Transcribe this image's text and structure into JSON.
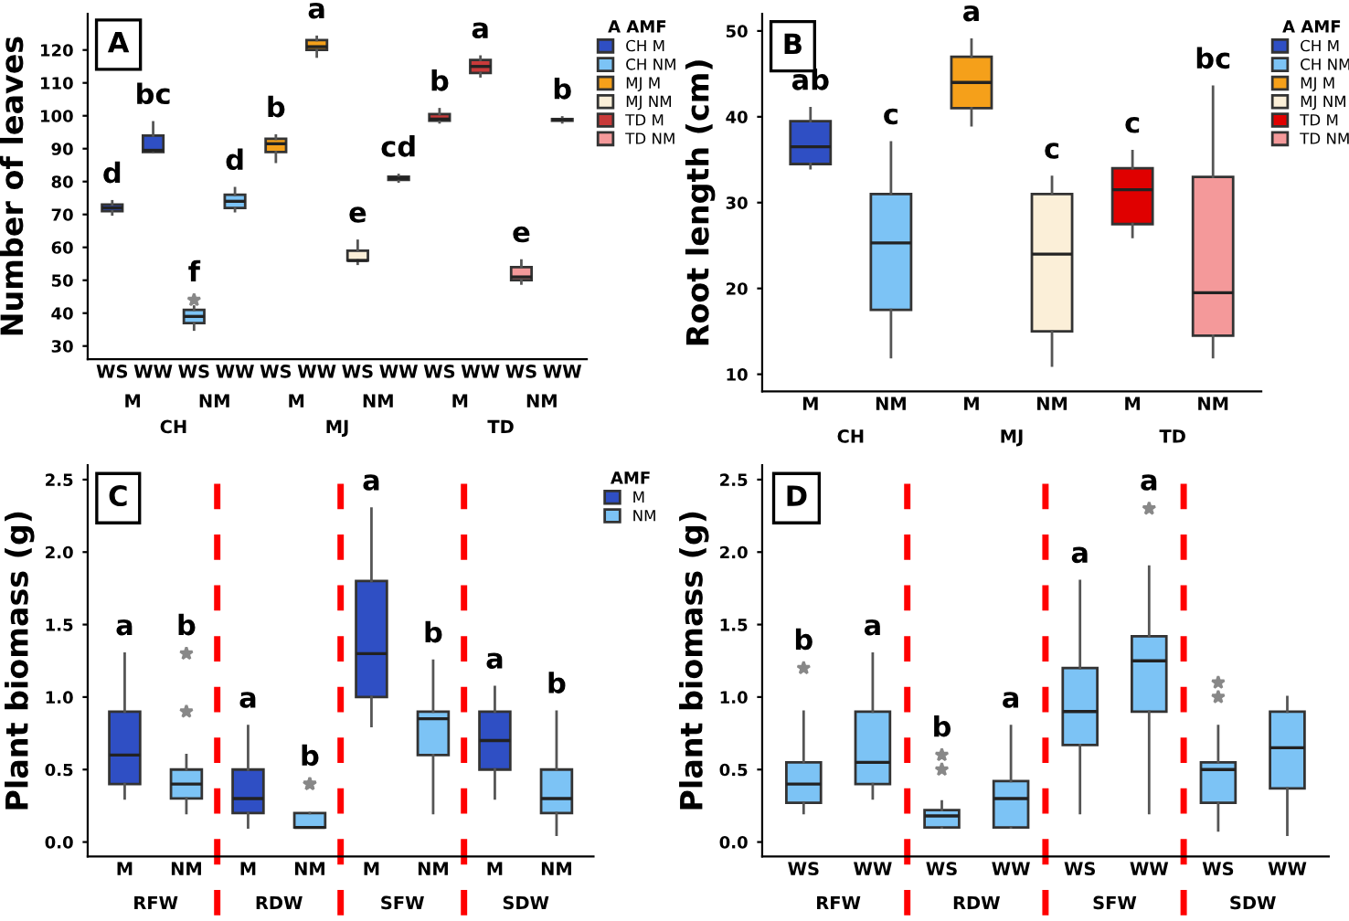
{
  "chart_data": [
    {
      "type": "box",
      "title": "A",
      "ylabel": "Number of leaves",
      "categories": [
        "WS",
        "WW",
        "WS",
        "WW",
        "WS",
        "WW",
        "WS",
        "WW",
        "WS",
        "WW",
        "WS",
        "WW"
      ],
      "ylim": [
        26,
        131
      ],
      "yticks": [
        30,
        40,
        50,
        60,
        70,
        80,
        90,
        100,
        110,
        120
      ],
      "legend": "top right",
      "legend_title": "A AMF",
      "grid": false,
      "annotations": [
        "M",
        "NM",
        "M",
        "NM",
        "M",
        "NM",
        "CH",
        "MJ",
        "TD"
      ],
      "series": [
        {
          "name": "CH M",
          "color": "#2f4fc4",
          "boxes": [
            {
              "low": 70,
              "q1": 71,
              "median": 72,
              "q3": 73,
              "high": 74
            },
            {
              "low": 89,
              "q1": 89,
              "median": 89.5,
              "q3": 94,
              "high": 98
            },
            null,
            null,
            null,
            null,
            null,
            null,
            null,
            null,
            null,
            null
          ],
          "value_labels": [
            "d",
            "bc",
            null,
            null,
            null,
            null,
            null,
            null,
            null,
            null,
            null,
            null
          ]
        },
        {
          "name": "CH NM",
          "color": "#7cc3f5",
          "boxes": [
            null,
            null,
            {
              "low": 35,
              "q1": 37,
              "median": 39,
              "q3": 41,
              "high": 42,
              "outliers": [
                44
              ]
            },
            {
              "low": 71,
              "q1": 72,
              "median": 74,
              "q3": 76,
              "high": 78
            },
            null,
            null,
            null,
            null,
            null,
            null,
            null,
            null
          ],
          "value_labels": [
            null,
            null,
            "f",
            "d",
            null,
            null,
            null,
            null,
            null,
            null,
            null,
            null
          ]
        },
        {
          "name": "MJ M",
          "color": "#f5a01a",
          "boxes": [
            null,
            null,
            null,
            null,
            {
              "low": 86,
              "q1": 89,
              "median": 91.5,
              "q3": 93,
              "high": 94
            },
            {
              "low": 118,
              "q1": 120,
              "median": 121,
              "q3": 123,
              "high": 124
            },
            null,
            null,
            null,
            null,
            null,
            null
          ],
          "value_labels": [
            null,
            null,
            null,
            null,
            "b",
            "a",
            null,
            null,
            null,
            null,
            null,
            null
          ]
        },
        {
          "name": "MJ NM",
          "color": "#fbefd8",
          "boxes": [
            null,
            null,
            null,
            null,
            null,
            null,
            {
              "low": 55,
              "q1": 56,
              "median": 56,
              "q3": 59,
              "high": 62
            },
            {
              "low": 80,
              "q1": 80.5,
              "median": 81,
              "q3": 81.5,
              "high": 82
            },
            null,
            null,
            null,
            null
          ],
          "value_labels": [
            null,
            null,
            null,
            null,
            null,
            null,
            "e",
            "cd",
            null,
            null,
            null,
            null
          ]
        },
        {
          "name": "TD M",
          "color": "#c83a3a",
          "boxes": [
            null,
            null,
            null,
            null,
            null,
            null,
            null,
            null,
            {
              "low": 98,
              "q1": 98.5,
              "median": 99,
              "q3": 100.5,
              "high": 102
            },
            {
              "low": 112,
              "q1": 113,
              "median": 115,
              "q3": 117,
              "high": 118
            },
            null,
            null
          ],
          "value_labels": [
            null,
            null,
            null,
            null,
            null,
            null,
            null,
            null,
            "b",
            "a",
            null,
            null
          ]
        },
        {
          "name": "TD NM",
          "color": "#f4999a",
          "boxes": [
            null,
            null,
            null,
            null,
            null,
            null,
            null,
            null,
            null,
            null,
            {
              "low": 49,
              "q1": 50,
              "median": 51,
              "q3": 54,
              "high": 56
            },
            {
              "low": 98,
              "q1": 98.5,
              "median": 98.8,
              "q3": 99,
              "high": 99.5
            }
          ],
          "value_labels": [
            null,
            null,
            null,
            null,
            null,
            null,
            null,
            null,
            null,
            null,
            "e",
            "b"
          ]
        }
      ]
    },
    {
      "type": "box",
      "title": "B",
      "ylabel": "Root length (cm)",
      "categories": [
        "M",
        "NM",
        "M",
        "NM",
        "M",
        "NM"
      ],
      "ylim": [
        8,
        52
      ],
      "yticks": [
        10,
        20,
        30,
        40,
        50
      ],
      "legend": "top right",
      "legend_title": "A AMF",
      "grid": false,
      "annotations": [
        "CH",
        "MJ",
        "TD"
      ],
      "series": [
        {
          "name": "CH M",
          "color": "#2f4fc4",
          "boxes": [
            {
              "low": 34,
              "q1": 34.5,
              "median": 36.5,
              "q3": 39.5,
              "high": 41
            },
            null,
            null,
            null,
            null,
            null
          ],
          "value_labels": [
            "ab",
            null,
            null,
            null,
            null,
            null
          ]
        },
        {
          "name": "CH NM",
          "color": "#7cc3f5",
          "boxes": [
            null,
            {
              "low": 12,
              "q1": 17.5,
              "median": 25.3,
              "q3": 31,
              "high": 37
            },
            null,
            null,
            null,
            null
          ],
          "value_labels": [
            null,
            "c",
            null,
            null,
            null,
            null
          ]
        },
        {
          "name": "MJ M",
          "color": "#f5a01a",
          "boxes": [
            null,
            null,
            {
              "low": 39,
              "q1": 41,
              "median": 44,
              "q3": 47,
              "high": 49
            },
            null,
            null,
            null
          ],
          "value_labels": [
            null,
            null,
            "a",
            null,
            null,
            null
          ]
        },
        {
          "name": "MJ NM",
          "color": "#fbefd8",
          "boxes": [
            null,
            null,
            null,
            {
              "low": 11,
              "q1": 15,
              "median": 24,
              "q3": 31,
              "high": 33
            },
            null,
            null
          ],
          "value_labels": [
            null,
            null,
            null,
            "c",
            null,
            null
          ]
        },
        {
          "name": "TD M",
          "color": "#e00000",
          "boxes": [
            null,
            null,
            null,
            null,
            {
              "low": 26,
              "q1": 27.5,
              "median": 31.5,
              "q3": 34,
              "high": 36
            },
            null
          ],
          "value_labels": [
            null,
            null,
            null,
            null,
            "c",
            null
          ]
        },
        {
          "name": "TD NM",
          "color": "#f4999a",
          "boxes": [
            null,
            null,
            null,
            null,
            null,
            {
              "low": 12,
              "q1": 14.5,
              "median": 19.5,
              "q3": 33,
              "high": 43.5
            }
          ],
          "value_labels": [
            null,
            null,
            null,
            null,
            null,
            "bc"
          ]
        }
      ]
    },
    {
      "type": "box",
      "title": "C",
      "ylabel": "Plant biomass (g)",
      "categories": [
        "M",
        "NM",
        "M",
        "NM",
        "M",
        "NM",
        "M",
        "NM"
      ],
      "ylim": [
        -0.1,
        2.6
      ],
      "yticks": [
        {
          "value": 0,
          "label": "0.0"
        },
        0.5,
        {
          "value": 1,
          "label": "1.0"
        },
        1.5,
        {
          "value": 2,
          "label": "2.0"
        },
        2.5
      ],
      "legend": "top right",
      "legend_title": "AMF",
      "grid": false,
      "annotations": [
        "RFW",
        "RDW",
        "SFW",
        "SDW"
      ],
      "series": [
        {
          "name": "M",
          "color": "#2f4fc4",
          "boxes": [
            {
              "low": 0.3,
              "q1": 0.4,
              "median": 0.6,
              "q3": 0.9,
              "high": 1.3
            },
            null,
            {
              "low": 0.1,
              "q1": 0.2,
              "median": 0.3,
              "q3": 0.5,
              "high": 0.8
            },
            null,
            {
              "low": 0.8,
              "q1": 1.0,
              "median": 1.3,
              "q3": 1.8,
              "high": 2.3
            },
            null,
            {
              "low": 0.3,
              "q1": 0.5,
              "median": 0.7,
              "q3": 0.9,
              "high": 1.07
            },
            null
          ],
          "value_labels": [
            "a",
            null,
            "a",
            null,
            "a",
            null,
            "a",
            null
          ]
        },
        {
          "name": "NM",
          "color": "#7cc3f5",
          "boxes": [
            null,
            {
              "low": 0.2,
              "q1": 0.3,
              "median": 0.4,
              "q3": 0.5,
              "high": 0.6,
              "outliers": [
                0.9,
                1.3
              ]
            },
            null,
            {
              "low": 0.1,
              "q1": 0.1,
              "median": 0.1,
              "q3": 0.2,
              "high": 0.2,
              "outliers": [
                0.4,
                0.4
              ]
            },
            null,
            {
              "low": 0.2,
              "q1": 0.6,
              "median": 0.85,
              "q3": 0.9,
              "high": 1.25
            },
            null,
            {
              "low": 0.05,
              "q1": 0.2,
              "median": 0.3,
              "q3": 0.5,
              "high": 0.9
            }
          ],
          "value_labels": [
            null,
            "b",
            null,
            "b",
            null,
            "b",
            null,
            "b"
          ]
        }
      ]
    },
    {
      "type": "box",
      "title": "D",
      "ylabel": "Plant biomass (g)",
      "categories": [
        "WS",
        "WW",
        "WS",
        "WW",
        "WS",
        "WW",
        "WS",
        "WW"
      ],
      "ylim": [
        -0.1,
        2.6
      ],
      "yticks": [
        {
          "value": 0,
          "label": "0.0"
        },
        0.5,
        {
          "value": 1,
          "label": "1.0"
        },
        1.5,
        {
          "value": 2,
          "label": "2.0"
        },
        2.5
      ],
      "grid": false,
      "annotations": [
        "RFW",
        "RDW",
        "SFW",
        "SDW"
      ],
      "series": [
        {
          "color": "#7cc3f5",
          "boxes": [
            {
              "low": 0.2,
              "q1": 0.27,
              "median": 0.4,
              "q3": 0.55,
              "high": 0.9,
              "outliers": [
                1.2
              ]
            },
            {
              "low": 0.3,
              "q1": 0.4,
              "median": 0.55,
              "q3": 0.9,
              "high": 1.3
            },
            {
              "low": 0.1,
              "q1": 0.1,
              "median": 0.18,
              "q3": 0.22,
              "high": 0.28,
              "outliers": [
                0.5,
                0.6
              ]
            },
            {
              "low": 0.1,
              "q1": 0.1,
              "median": 0.3,
              "q3": 0.42,
              "high": 0.8
            },
            {
              "low": 0.2,
              "q1": 0.67,
              "median": 0.9,
              "q3": 1.2,
              "high": 1.8
            },
            {
              "low": 0.2,
              "q1": 0.9,
              "median": 1.25,
              "q3": 1.42,
              "high": 1.9,
              "outliers": [
                2.3
              ]
            },
            {
              "low": 0.08,
              "q1": 0.27,
              "median": 0.5,
              "q3": 0.55,
              "high": 0.8,
              "outliers": [
                1.0,
                1.1
              ]
            },
            {
              "low": 0.05,
              "q1": 0.37,
              "median": 0.65,
              "q3": 0.9,
              "high": 1.0
            }
          ],
          "value_labels": [
            "b",
            "a",
            "b",
            "a",
            "a",
            "a",
            null,
            null
          ]
        }
      ]
    }
  ]
}
